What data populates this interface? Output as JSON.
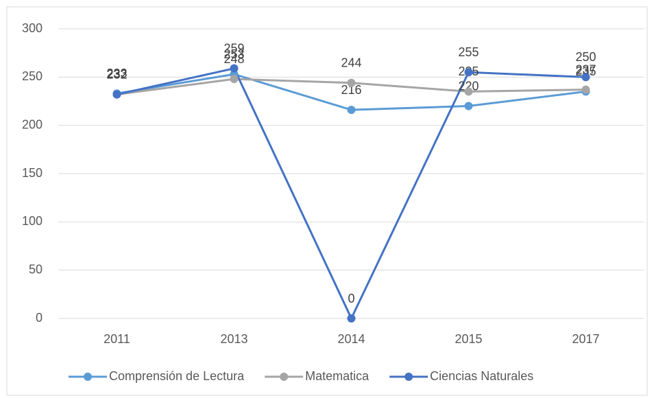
{
  "chart_data": {
    "type": "line",
    "categories": [
      "2011",
      "2013",
      "2014",
      "2015",
      "2017"
    ],
    "series": [
      {
        "name": "Comprensión de Lectura",
        "color": "#5b9bd5",
        "values": [
          233,
          253,
          216,
          220,
          235
        ]
      },
      {
        "name": "Matematica",
        "color": "#a5a5a5",
        "values": [
          232,
          248,
          244,
          235,
          237
        ]
      },
      {
        "name": "Ciencias Naturales",
        "color": "#4472c4",
        "values": [
          232,
          259,
          0,
          255,
          250
        ]
      }
    ],
    "ylim": [
      0,
      300
    ],
    "yticks": [
      0,
      50,
      100,
      150,
      200,
      250,
      300
    ],
    "grid": true,
    "legend": "bottom"
  }
}
